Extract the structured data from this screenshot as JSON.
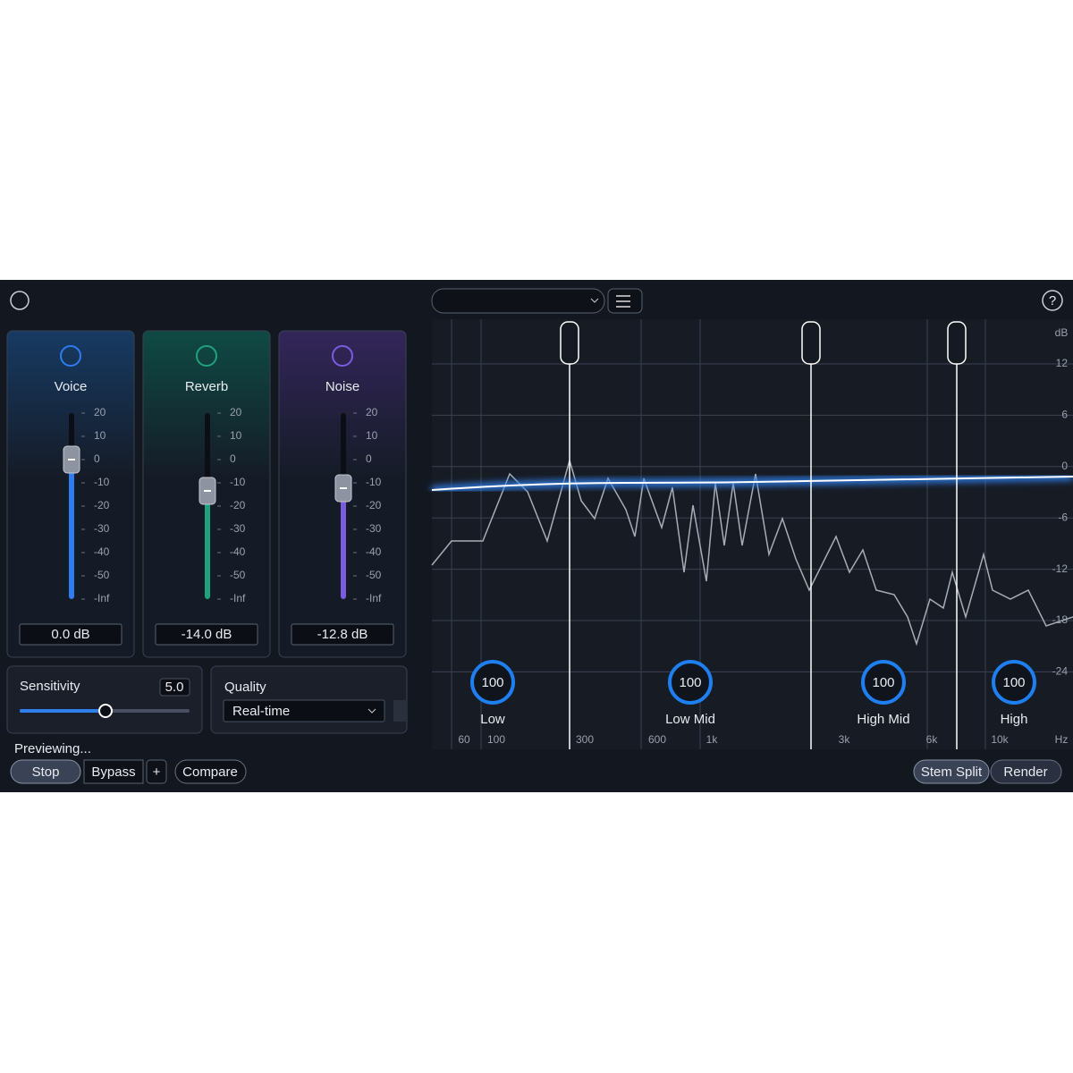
{
  "modules": [
    {
      "name": "Voice",
      "readout": "0.0 dB"
    },
    {
      "name": "Reverb",
      "readout": "-14.0 dB"
    },
    {
      "name": "Noise",
      "readout": "-12.8 dB"
    }
  ],
  "fader_scale": [
    "20",
    "10",
    "0",
    "-10",
    "-20",
    "-30",
    "-40",
    "-50",
    "-Inf"
  ],
  "sensitivity": {
    "label": "Sensitivity",
    "value": "5.0"
  },
  "quality": {
    "label": "Quality",
    "selected": "Real-time"
  },
  "status": "Previewing...",
  "buttons": {
    "stop": "Stop",
    "bypass": "Bypass",
    "add": "+",
    "compare": "Compare",
    "stem_split": "Stem Split",
    "render": "Render"
  },
  "spectrum": {
    "db_unit": "dB",
    "db_labels": [
      "12",
      "6",
      "0",
      "-6",
      "-12",
      "-18",
      "-24"
    ],
    "freq_unit": "Hz",
    "freq_labels": [
      "60",
      "100",
      "300",
      "600",
      "1k",
      "3k",
      "6k",
      "10k"
    ],
    "bands": [
      {
        "value": 100,
        "label": "Low"
      },
      {
        "value": 100,
        "label": "Low Mid"
      },
      {
        "value": 100,
        "label": "High Mid"
      },
      {
        "value": 100,
        "label": "High"
      }
    ]
  }
}
